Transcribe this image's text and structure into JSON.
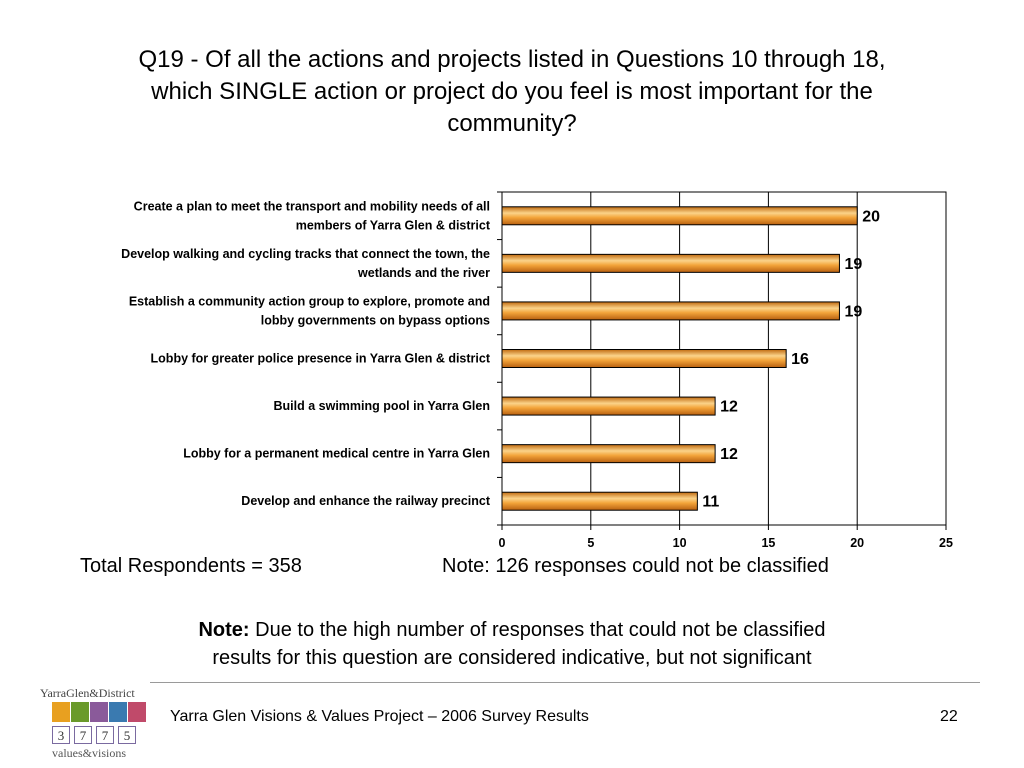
{
  "title_lines": [
    "Q19 - Of all the actions and projects listed in Questions 10 through 18,",
    "which SINGLE action or project do you feel is most important for the",
    "community?"
  ],
  "chart_data": {
    "type": "bar",
    "orientation": "horizontal",
    "categories": [
      [
        "Create a plan to meet the transport and mobility needs of all",
        "members of Yarra Glen & district"
      ],
      [
        "Develop walking and cycling tracks that connect the town, the",
        "wetlands and the river"
      ],
      [
        "Establish a community action group to explore, promote and",
        "lobby governments on bypass options"
      ],
      [
        "Lobby for greater police presence in Yarra Glen & district"
      ],
      [
        "Build a swimming pool in Yarra Glen"
      ],
      [
        "Lobby for a permanent medical centre in Yarra Glen"
      ],
      [
        "Develop and enhance the railway precinct"
      ]
    ],
    "values": [
      20,
      19,
      19,
      16,
      12,
      12,
      11
    ],
    "data_labels": [
      "20",
      "19",
      "19",
      "16",
      "12",
      "12",
      "11"
    ],
    "xlim": [
      0,
      25
    ],
    "xticks": [
      0,
      5,
      10,
      15,
      20,
      25
    ],
    "grid": true,
    "bar_color": "#e8921f",
    "bar_highlight": "#fbd38a",
    "title": "",
    "xlabel": "",
    "ylabel": ""
  },
  "total_respondents": "Total Respondents = 358",
  "note_unclassified": "Note: 126 responses could not be classified",
  "note": {
    "lead": "Note:",
    "line1": " Due to the high number of responses that could not be classified",
    "line2": "results for this question are considered indicative, but not significant"
  },
  "footer": {
    "text": "Yarra Glen Visions & Values Project – 2006 Survey Results",
    "page": "22"
  },
  "logo": {
    "brand": "YarraGlen&District",
    "digits": [
      "3",
      "7",
      "7",
      "5"
    ],
    "tagline": "values&visions",
    "tile_colors": [
      "#e8a020",
      "#6a9a2a",
      "#8a5a9a",
      "#3a7ab0",
      "#c04a6a"
    ]
  }
}
